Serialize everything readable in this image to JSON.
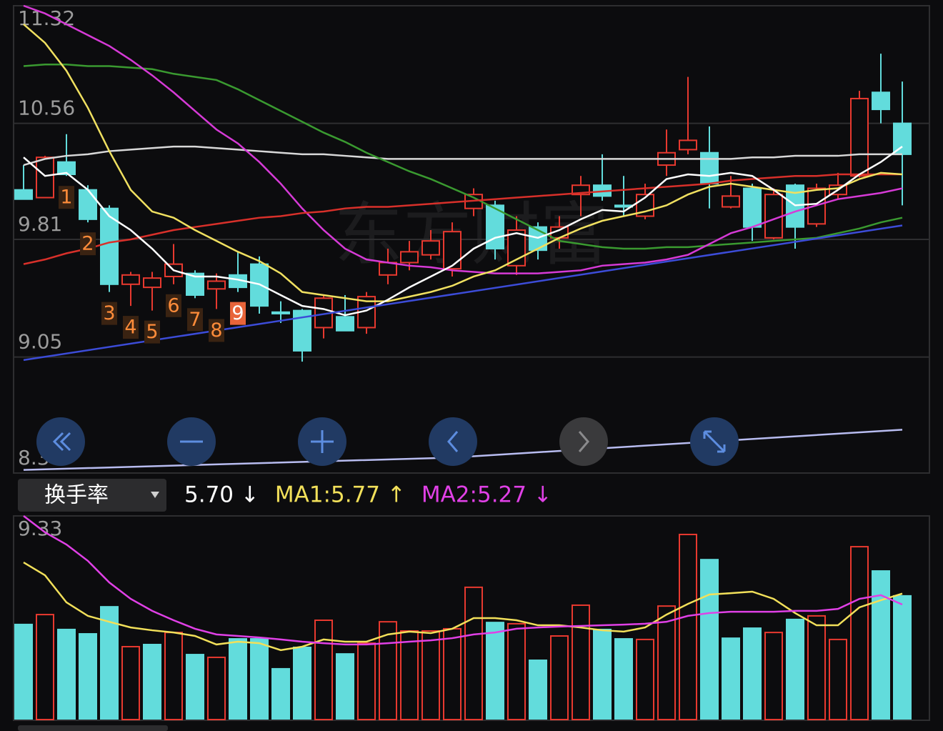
{
  "chart_data": [
    {
      "type": "candlestick",
      "watermark": "东方财富",
      "ylim": [
        8.3,
        11.32
      ],
      "yticks": [
        11.32,
        10.56,
        9.81,
        9.05,
        8.3
      ],
      "grid": true,
      "up_color": "#e8392f",
      "down_color": "#62dcdc",
      "open": [
        10.13,
        10.08,
        10.31,
        10.13,
        10.01,
        9.52,
        9.5,
        9.57,
        9.59,
        9.49,
        9.58,
        9.65,
        9.34,
        9.35,
        9.24,
        9.31,
        9.24,
        9.58,
        9.66,
        9.71,
        9.62,
        10.01,
        10.03,
        9.64,
        9.89,
        9.82,
        10.1,
        10.16,
        10.03,
        9.96,
        10.29,
        10.39,
        10.37,
        10.02,
        10.14,
        9.82,
        10.16,
        9.91,
        10.1,
        10.22,
        10.76,
        10.56
      ],
      "high": [
        10.29,
        10.35,
        10.49,
        10.16,
        10.03,
        9.6,
        9.6,
        9.78,
        9.61,
        9.59,
        9.73,
        9.7,
        9.41,
        9.36,
        9.45,
        9.45,
        9.47,
        9.75,
        9.8,
        9.87,
        9.92,
        10.14,
        10.06,
        9.96,
        9.92,
        9.96,
        10.22,
        10.36,
        10.22,
        10.17,
        10.52,
        10.86,
        10.54,
        10.22,
        10.17,
        10.14,
        10.17,
        10.17,
        10.24,
        10.77,
        11.01,
        10.83
      ],
      "low": [
        10.07,
        10.08,
        10.22,
        9.92,
        9.47,
        9.38,
        9.35,
        9.52,
        9.43,
        9.36,
        9.47,
        9.33,
        9.27,
        9.02,
        9.17,
        9.22,
        9.2,
        9.52,
        9.61,
        9.68,
        9.57,
        9.96,
        9.68,
        9.58,
        9.68,
        9.75,
        9.96,
        10.06,
        9.96,
        9.94,
        10.22,
        10.36,
        10.01,
        10.01,
        9.8,
        9.81,
        9.75,
        9.89,
        10.07,
        10.21,
        10.56,
        10.03
      ],
      "close": [
        10.07,
        10.34,
        10.23,
        9.94,
        9.52,
        9.58,
        9.56,
        9.65,
        9.45,
        9.54,
        9.5,
        9.38,
        9.33,
        9.09,
        9.43,
        9.22,
        9.44,
        9.66,
        9.73,
        9.8,
        9.86,
        10.1,
        9.75,
        9.87,
        9.74,
        9.89,
        10.16,
        10.09,
        10.02,
        10.1,
        10.37,
        10.45,
        10.17,
        10.09,
        9.89,
        10.1,
        9.89,
        10.14,
        10.16,
        10.72,
        10.65,
        10.36
      ],
      "candle_labels": [
        null,
        null,
        "1",
        "2",
        "3",
        "4",
        "5",
        "6",
        "7",
        "8",
        "9",
        null,
        null,
        null,
        null,
        null,
        null,
        null,
        null,
        null,
        null,
        null,
        null,
        null,
        null,
        null,
        null,
        null,
        null,
        null,
        null,
        null,
        null,
        null,
        null,
        null,
        null,
        null,
        null,
        null,
        null,
        null
      ],
      "lines": [
        {
          "color": "#d8d8d8",
          "values": [
            10.29,
            10.33,
            10.35,
            10.36,
            10.38,
            10.39,
            10.4,
            10.41,
            10.41,
            10.4,
            10.39,
            10.38,
            10.37,
            10.36,
            10.36,
            10.35,
            10.34,
            10.33,
            10.33,
            10.33,
            10.33,
            10.33,
            10.33,
            10.33,
            10.33,
            10.33,
            10.33,
            10.33,
            10.33,
            10.33,
            10.33,
            10.33,
            10.33,
            10.33,
            10.34,
            10.34,
            10.35,
            10.35,
            10.35,
            10.36,
            10.36,
            10.36
          ]
        },
        {
          "color": "#3a9a30",
          "values": [
            10.93,
            10.94,
            10.94,
            10.93,
            10.93,
            10.92,
            10.91,
            10.88,
            10.86,
            10.84,
            10.78,
            10.71,
            10.64,
            10.57,
            10.5,
            10.44,
            10.37,
            10.31,
            10.25,
            10.2,
            10.14,
            10.08,
            10.01,
            9.94,
            9.87,
            9.8,
            9.78,
            9.76,
            9.75,
            9.75,
            9.76,
            9.76,
            9.77,
            9.78,
            9.79,
            9.8,
            9.81,
            9.82,
            9.85,
            9.88,
            9.92,
            9.95
          ]
        },
        {
          "color": "#d63ad6",
          "values": [
            11.32,
            11.27,
            11.2,
            11.13,
            11.06,
            10.97,
            10.87,
            10.76,
            10.64,
            10.52,
            10.43,
            10.31,
            10.17,
            10.01,
            9.87,
            9.75,
            9.68,
            9.66,
            9.64,
            9.63,
            9.61,
            9.6,
            9.59,
            9.59,
            9.59,
            9.6,
            9.61,
            9.64,
            9.65,
            9.66,
            9.68,
            9.71,
            9.78,
            9.85,
            9.89,
            9.94,
            9.99,
            10.03,
            10.07,
            10.09,
            10.11,
            10.14
          ]
        },
        {
          "color": "#d8302a",
          "values": [
            9.65,
            9.68,
            9.72,
            9.75,
            9.79,
            9.81,
            9.84,
            9.87,
            9.89,
            9.91,
            9.93,
            9.95,
            9.96,
            9.98,
            9.99,
            10.01,
            10.02,
            10.02,
            10.03,
            10.04,
            10.05,
            10.06,
            10.07,
            10.08,
            10.09,
            10.1,
            10.11,
            10.12,
            10.13,
            10.14,
            10.15,
            10.16,
            10.17,
            10.19,
            10.2,
            10.21,
            10.22,
            10.22,
            10.23,
            10.23,
            10.23,
            10.23
          ]
        },
        {
          "color": "#f0e060",
          "values": [
            11.2,
            11.08,
            10.9,
            10.66,
            10.38,
            10.13,
            9.99,
            9.95,
            9.87,
            9.8,
            9.73,
            9.67,
            9.59,
            9.47,
            9.45,
            9.43,
            9.41,
            9.41,
            9.44,
            9.47,
            9.51,
            9.57,
            9.61,
            9.68,
            9.75,
            9.82,
            9.88,
            9.93,
            9.96,
            9.99,
            10.03,
            10.1,
            10.15,
            10.17,
            10.15,
            10.13,
            10.11,
            10.13,
            10.14,
            10.2,
            10.24,
            10.23
          ]
        },
        {
          "color": "#ffffff",
          "values": [
            10.34,
            10.22,
            10.24,
            10.13,
            9.96,
            9.87,
            9.75,
            9.61,
            9.57,
            9.57,
            9.55,
            9.52,
            9.45,
            9.38,
            9.36,
            9.32,
            9.35,
            9.42,
            9.5,
            9.57,
            9.64,
            9.75,
            9.82,
            9.85,
            9.82,
            9.87,
            9.94,
            10.0,
            9.99,
            10.08,
            10.2,
            10.23,
            10.22,
            10.24,
            10.22,
            10.13,
            10.03,
            10.04,
            10.13,
            10.23,
            10.31,
            10.41
          ]
        },
        {
          "color": "#3c4cd8",
          "x": [
            0,
            41
          ],
          "values": [
            9.03,
            9.9
          ]
        },
        {
          "color": "#b8bcf0",
          "x": [
            0,
            20,
            41
          ],
          "values": [
            8.32,
            8.4,
            8.58
          ]
        }
      ]
    },
    {
      "type": "bar",
      "selector": "换手率",
      "legend": [
        {
          "text": "5.70 ↓",
          "color": "#ffffff"
        },
        {
          "text": "MA1:5.77 ↑",
          "color": "#f2e05a"
        },
        {
          "text": "MA2:5.27 ↓",
          "color": "#e040e6"
        }
      ],
      "ylim": [
        0,
        9.33
      ],
      "yticks": [
        9.33
      ],
      "values": [
        4.39,
        4.81,
        4.16,
        3.96,
        5.2,
        3.34,
        3.47,
        3.99,
        3.01,
        2.85,
        3.73,
        3.73,
        2.36,
        3.34,
        4.55,
        3.04,
        3.5,
        4.48,
        4.06,
        4.06,
        4.16,
        6.06,
        4.48,
        4.39,
        2.75,
        3.83,
        5.24,
        4.16,
        3.73,
        3.67,
        5.2,
        8.48,
        7.36,
        3.76,
        4.22,
        3.99,
        4.62,
        4.75,
        3.67,
        7.92,
        6.84,
        5.7
      ],
      "colors": [
        "#62dcdc",
        "#e8392f",
        "#62dcdc",
        "#62dcdc",
        "#62dcdc",
        "#e8392f",
        "#62dcdc",
        "#e8392f",
        "#62dcdc",
        "#e8392f",
        "#62dcdc",
        "#62dcdc",
        "#62dcdc",
        "#62dcdc",
        "#e8392f",
        "#62dcdc",
        "#e8392f",
        "#e8392f",
        "#e8392f",
        "#e8392f",
        "#e8392f",
        "#e8392f",
        "#62dcdc",
        "#e8392f",
        "#62dcdc",
        "#e8392f",
        "#e8392f",
        "#62dcdc",
        "#62dcdc",
        "#e8392f",
        "#e8392f",
        "#e8392f",
        "#62dcdc",
        "#62dcdc",
        "#62dcdc",
        "#e8392f",
        "#62dcdc",
        "#e8392f",
        "#e8392f",
        "#e8392f",
        "#62dcdc",
        "#62dcdc"
      ],
      "hollow_color": "#e8392f",
      "lines": [
        {
          "color": "#f2e05a",
          "values": [
            7.2,
            6.61,
            5.37,
            4.75,
            4.48,
            4.22,
            4.09,
            3.99,
            3.83,
            3.44,
            3.57,
            3.5,
            3.18,
            3.34,
            3.67,
            3.57,
            3.57,
            3.9,
            4.03,
            3.96,
            4.16,
            4.65,
            4.65,
            4.55,
            4.32,
            4.32,
            4.22,
            4.09,
            4.03,
            4.22,
            4.81,
            5.3,
            5.73,
            5.79,
            5.86,
            5.53,
            4.88,
            4.32,
            4.32,
            5.14,
            5.47,
            5.77
          ]
        },
        {
          "color": "#e040e6",
          "values": [
            9.33,
            8.58,
            8.02,
            7.27,
            6.28,
            5.53,
            4.98,
            4.55,
            4.16,
            3.9,
            3.83,
            3.76,
            3.67,
            3.57,
            3.5,
            3.44,
            3.44,
            3.5,
            3.57,
            3.63,
            3.73,
            3.9,
            3.99,
            4.16,
            4.22,
            4.26,
            4.29,
            4.32,
            4.35,
            4.39,
            4.48,
            4.75,
            4.88,
            4.94,
            4.94,
            4.94,
            4.98,
            4.98,
            5.07,
            5.53,
            5.7,
            5.27
          ]
        }
      ]
    }
  ]
}
